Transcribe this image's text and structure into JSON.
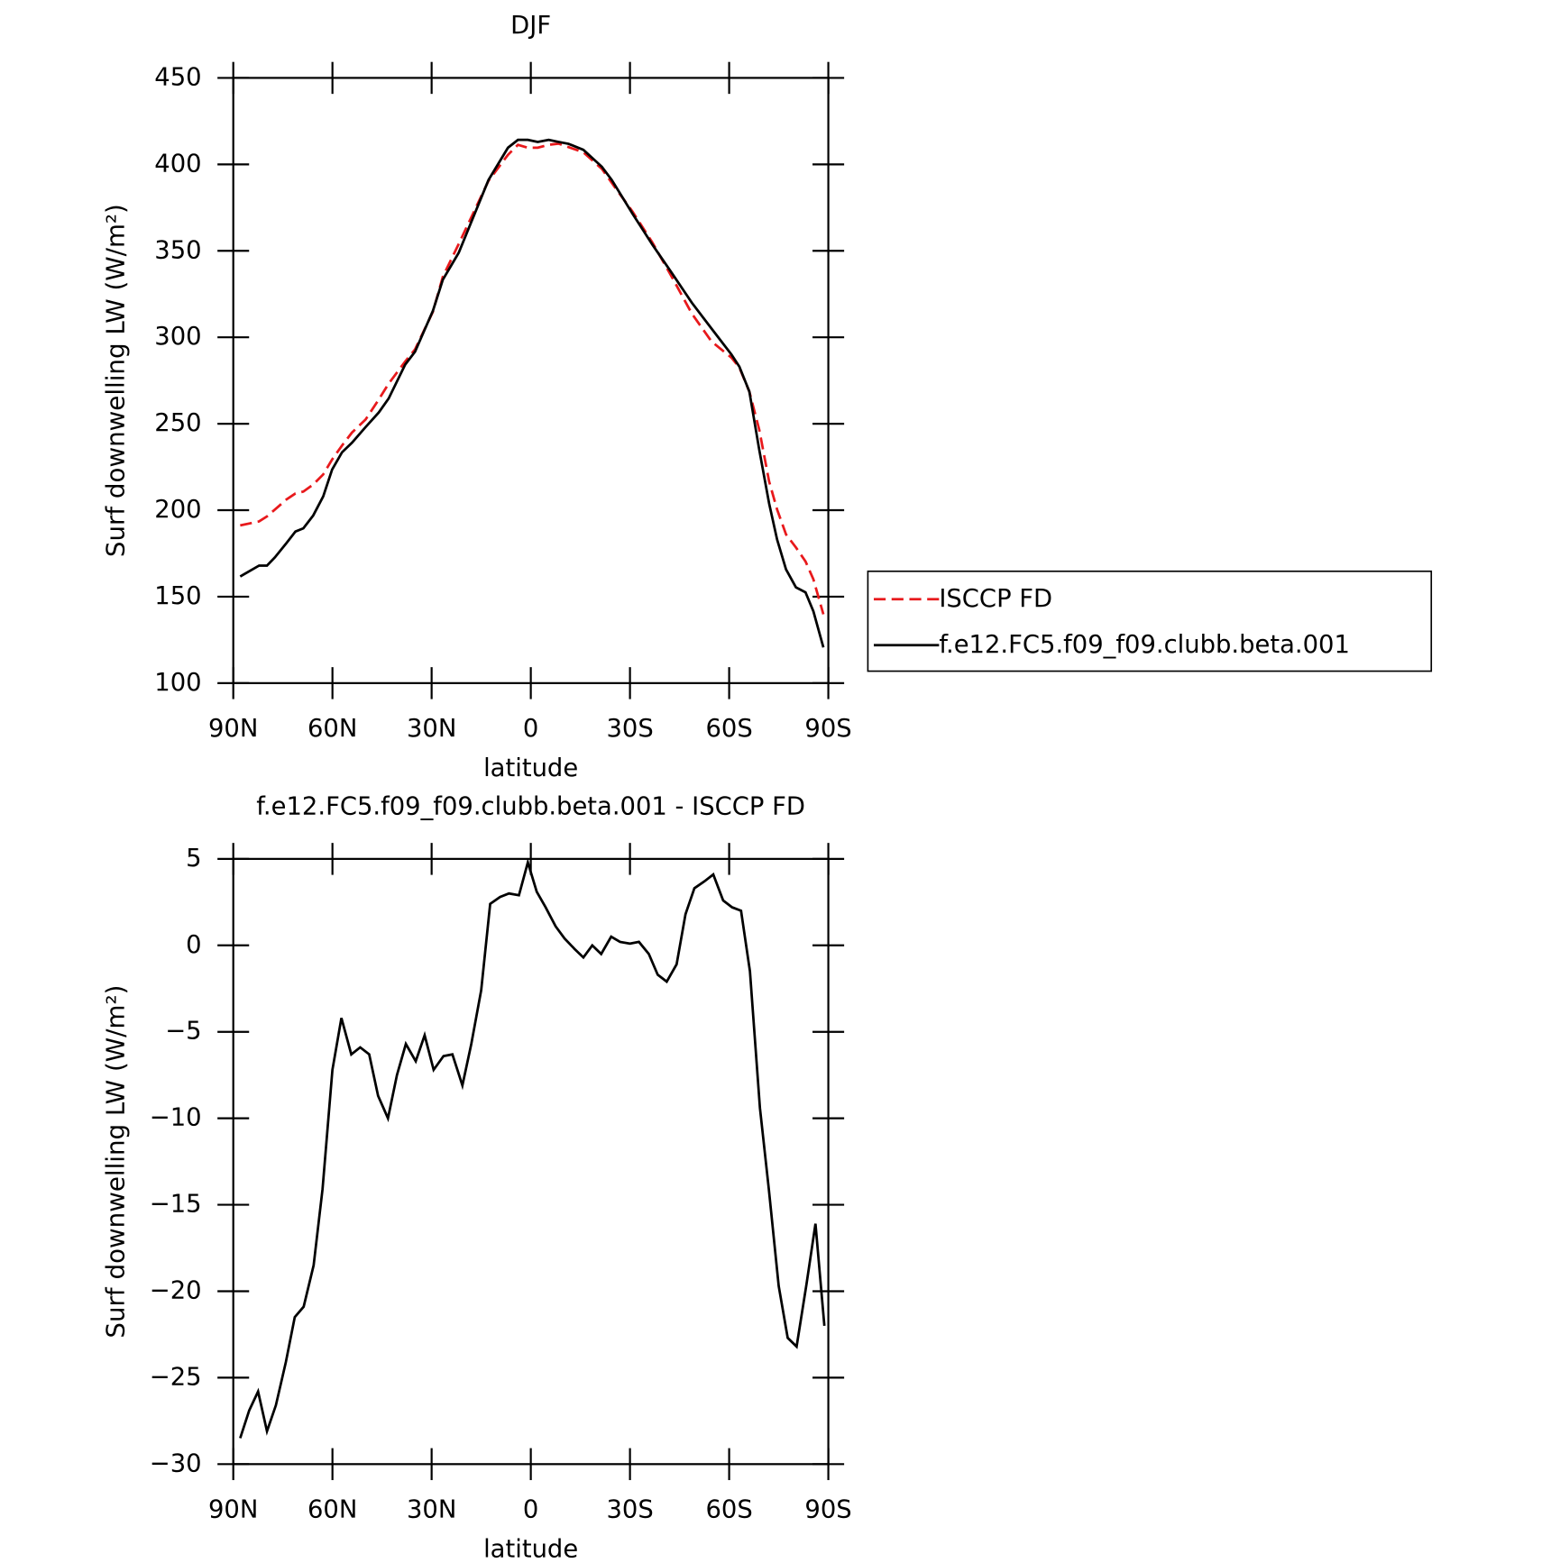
{
  "chart_data": [
    {
      "type": "line",
      "title": "DJF",
      "xlabel": "latitude",
      "ylabel": "Surf downwelling LW (W/m²)",
      "x": [
        87.9,
        82.2,
        79.8,
        77.4,
        73.9,
        71.2,
        68.8,
        65.8,
        62.8,
        60.1,
        57.1,
        54.1,
        50,
        46,
        43,
        38,
        35,
        29.6,
        26.6,
        21.8,
        12.8,
        6.9,
        3.9,
        0.9,
        -2.1,
        -5.4,
        -8.4,
        -11.4,
        -15.9,
        -21.5,
        -24.5,
        -30.8,
        -36.8,
        -42.8,
        -48.7,
        -54.7,
        -60.7,
        -63.1,
        -66.1,
        -69.1,
        -72.1,
        -74.5,
        -77.2,
        -80.2,
        -83.1,
        -85.5,
        -88.5
      ],
      "series": [
        {
          "name": "ISCCP FD",
          "color": "#e8191c",
          "dash": true,
          "values": [
            191.2,
            193.5,
            196.4,
            200.4,
            206.2,
            209.7,
            210.8,
            214.9,
            220.7,
            229.3,
            237.4,
            244.9,
            252.4,
            264,
            273.2,
            286,
            293,
            314.8,
            335,
            354,
            390.5,
            405.5,
            411.3,
            409.6,
            409.6,
            411.3,
            412,
            410,
            407,
            397.4,
            389.3,
            372.6,
            354.7,
            334.5,
            313.7,
            297.5,
            288.2,
            282.5,
            268.6,
            246.6,
            216.6,
            200.4,
            186,
            178.5,
            170.4,
            160,
            139.8
          ]
        },
        {
          "name": "f.e12.FC5.f09_f09.clubb.beta.001",
          "color": "#000000",
          "dash": false,
          "values": [
            161.7,
            168,
            168,
            172.7,
            181,
            187.7,
            189.5,
            197,
            208,
            223.5,
            233.5,
            239,
            248,
            256.5,
            264.6,
            284.2,
            291.7,
            315.4,
            333.3,
            348.9,
            391,
            409.6,
            414.2,
            414.2,
            413,
            414.2,
            413,
            411.9,
            408.4,
            398.6,
            391,
            371.4,
            353.5,
            336.8,
            320,
            305,
            290,
            283,
            268.6,
            235,
            203.9,
            183,
            165.8,
            155.4,
            152.5,
            141.5,
            120.7
          ]
        }
      ],
      "xlim": [
        90,
        -90
      ],
      "xticks": [
        {
          "value": 90,
          "label": "90N"
        },
        {
          "value": 60,
          "label": "60N"
        },
        {
          "value": 30,
          "label": "30N"
        },
        0,
        {
          "value": -30,
          "label": "30S"
        },
        {
          "value": -60,
          "label": "60S"
        },
        {
          "value": -90,
          "label": "90S"
        }
      ],
      "ylim": [
        100,
        450
      ],
      "yticks": [
        100,
        150,
        200,
        250,
        300,
        350,
        400,
        450
      ],
      "legend": "right"
    },
    {
      "type": "line",
      "title": "f.e12.FC5.f09_f09.clubb.beta.001 - ISCCP FD",
      "xlabel": "latitude",
      "ylabel": "Surf downwelling LW (W/m²)",
      "x": [
        87.9,
        85.2,
        82.5,
        79.8,
        77.1,
        74.1,
        71.4,
        68.7,
        65.7,
        63.0,
        60.0,
        57.3,
        54.3,
        51.6,
        48.9,
        46.2,
        43.2,
        40.5,
        37.8,
        34.8,
        32.1,
        29.4,
        26.4,
        23.7,
        20.7,
        18.0,
        15.0,
        12.3,
        9.3,
        6.6,
        3.6,
        0.9,
        -1.8,
        -4.5,
        -7.5,
        -10.2,
        -13.2,
        -15.9,
        -18.6,
        -21.3,
        -24.3,
        -27.0,
        -30.0,
        -32.7,
        -35.7,
        -38.4,
        -41.1,
        -44.1,
        -46.8,
        -49.5,
        -52.5,
        -55.2,
        -58.2,
        -60.9,
        -63.6,
        -66.3,
        -69.3,
        -72.0,
        -75.0,
        -77.7,
        -80.4,
        -83.4,
        -86.1,
        -88.8
      ],
      "series": [
        {
          "color": "#000000",
          "values": [
            -28.5,
            -26.9,
            -25.8,
            -28.1,
            -26.6,
            -24.1,
            -21.5,
            -20.9,
            -18.5,
            -14.1,
            -7.2,
            -4.2,
            -6.3,
            -5.9,
            -6.3,
            -8.7,
            -10.0,
            -7.5,
            -5.7,
            -6.7,
            -5.2,
            -7.2,
            -6.4,
            -6.3,
            -8.1,
            -5.7,
            -2.6,
            2.4,
            2.8,
            3.0,
            2.9,
            4.8,
            3.1,
            2.2,
            1.1,
            0.4,
            -0.2,
            -0.7,
            0.0,
            -0.5,
            0.5,
            0.2,
            0.1,
            0.2,
            -0.5,
            -1.7,
            -2.1,
            -1.1,
            1.8,
            3.3,
            3.7,
            4.1,
            2.6,
            2.2,
            2.0,
            -1.5,
            -9.4,
            -14.1,
            -19.7,
            -22.7,
            -23.2,
            -19.6,
            -16.1,
            -22.0
          ]
        }
      ],
      "xlim": [
        90,
        -90
      ],
      "xticks": [
        {
          "value": 90,
          "label": "90N"
        },
        {
          "value": 60,
          "label": "60N"
        },
        {
          "value": 30,
          "label": "30N"
        },
        0,
        {
          "value": -30,
          "label": "30S"
        },
        {
          "value": -60,
          "label": "60S"
        },
        {
          "value": -90,
          "label": "90S"
        }
      ],
      "ylim": [
        -30,
        5
      ],
      "yticks": [
        {
          "value": -30,
          "label": "−30"
        },
        {
          "value": -25,
          "label": "−25"
        },
        {
          "value": -20,
          "label": "−20"
        },
        {
          "value": -15,
          "label": "−15"
        },
        {
          "value": -10,
          "label": "−10"
        },
        {
          "value": -5,
          "label": "−5"
        },
        0,
        5
      ]
    }
  ]
}
